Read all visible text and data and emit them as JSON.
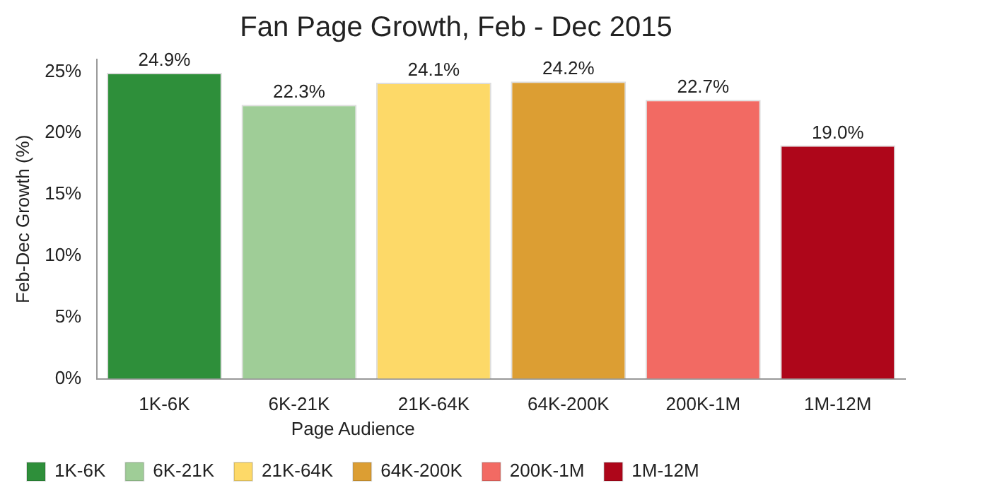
{
  "chart_data": {
    "type": "bar",
    "title": "Fan Page Growth, Feb - Dec 2015",
    "ylabel": "Feb-Dec Growth (%)",
    "legend_title": "Page Audience",
    "categories": [
      "1K-6K",
      "6K-21K",
      "21K-64K",
      "64K-200K",
      "200K-1M",
      "1M-12M"
    ],
    "series": [
      {
        "name": "1K-6K",
        "color": "#2e8f3a",
        "values": [
          24.9,
          null,
          null,
          null,
          null,
          null
        ],
        "value_labels": [
          "24.9%",
          null,
          null,
          null,
          null,
          null
        ]
      },
      {
        "name": "6K-21K",
        "color": "#9fcd97",
        "values": [
          null,
          22.3,
          null,
          null,
          null,
          null
        ],
        "value_labels": [
          null,
          "22.3%",
          null,
          null,
          null,
          null
        ]
      },
      {
        "name": "21K-64K",
        "color": "#fdd968",
        "values": [
          null,
          null,
          24.1,
          null,
          null,
          null
        ],
        "value_labels": [
          null,
          null,
          "24.1%",
          null,
          null,
          null
        ]
      },
      {
        "name": "64K-200K",
        "color": "#dc9e33",
        "values": [
          null,
          null,
          null,
          24.2,
          null,
          null
        ],
        "value_labels": [
          null,
          null,
          null,
          "24.2%",
          null,
          null
        ]
      },
      {
        "name": "200K-1M",
        "color": "#f26a63",
        "values": [
          null,
          null,
          null,
          null,
          22.7,
          null
        ],
        "value_labels": [
          null,
          null,
          null,
          null,
          "22.7%",
          null
        ]
      },
      {
        "name": "1M-12M",
        "color": "#ae061a",
        "values": [
          null,
          null,
          null,
          null,
          null,
          19.0
        ],
        "value_labels": [
          null,
          null,
          null,
          null,
          null,
          "19.0%"
        ]
      }
    ],
    "ylim": [
      0,
      26
    ],
    "yticks": [
      {
        "value": 0,
        "label": "0%"
      },
      {
        "value": 5,
        "label": "5%"
      },
      {
        "value": 10,
        "label": "10%"
      },
      {
        "value": 15,
        "label": "15%"
      },
      {
        "value": 20,
        "label": "20%"
      },
      {
        "value": 25,
        "label": "25%"
      }
    ],
    "grid": false,
    "legend": "bottom"
  }
}
